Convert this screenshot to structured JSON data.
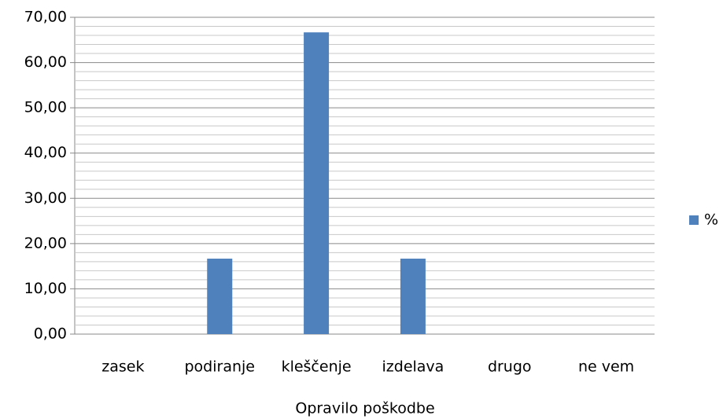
{
  "chart_data": {
    "type": "bar",
    "xlabel": "Opravilo poškodbe",
    "categories": [
      "zasek",
      "podiranje",
      "kleščenje",
      "izdelava",
      "drugo",
      "ne vem"
    ],
    "series": [
      {
        "name": "%",
        "color": "#4f81bd",
        "values": [
          0,
          16.67,
          66.67,
          16.67,
          0,
          0
        ]
      }
    ],
    "ylim": [
      0,
      70
    ],
    "yticks": [
      {
        "value": 0,
        "label": "0,00"
      },
      {
        "value": 10,
        "label": "10,00"
      },
      {
        "value": 20,
        "label": "20,00"
      },
      {
        "value": 30,
        "label": "30,00"
      },
      {
        "value": 40,
        "label": "40,00"
      },
      {
        "value": 50,
        "label": "50,00"
      },
      {
        "value": 60,
        "label": "60,00"
      },
      {
        "value": 70,
        "label": "70,00"
      }
    ],
    "minor_yticks": [
      2,
      4,
      6,
      8,
      12,
      14,
      16,
      18,
      22,
      24,
      26,
      28,
      32,
      34,
      36,
      38,
      42,
      44,
      46,
      48,
      52,
      54,
      56,
      58,
      62,
      64,
      66,
      68
    ],
    "grid": true,
    "legend": "right"
  }
}
